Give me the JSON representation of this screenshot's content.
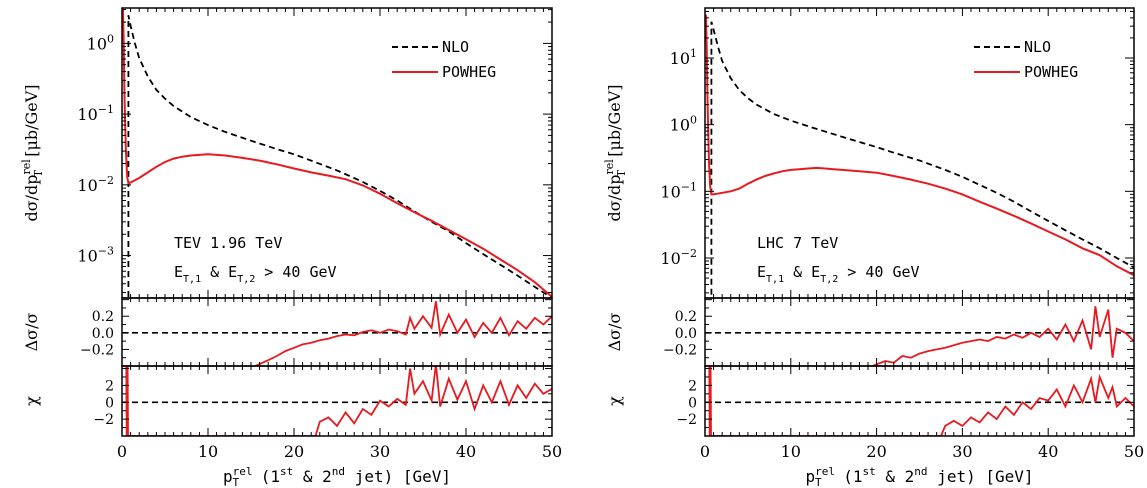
{
  "chart_data": [
    {
      "type": "line",
      "title": "",
      "annotation_energy": "TEV 1.96 TeV",
      "annotation_cut": {
        "main": "E",
        "sub1": "T,1",
        "mid": " & E",
        "sub2": "T,2",
        "rest": " > 40 GeV"
      },
      "xlabel": {
        "main": "p",
        "sup": "rel",
        "sub": "T",
        "part1": " (1",
        "sup1": "st",
        "part2": " & 2",
        "sup2": "nd",
        "part3": " jet) [GeV]"
      },
      "ylabel_main": {
        "pre": "dσ/dp",
        "sup": "rel",
        "sub": "T",
        "post": " [μb/GeV]"
      },
      "ylabel_delta": "Δσ/σ",
      "ylabel_chi": "χ",
      "xlim": [
        0,
        50
      ],
      "xticks": [
        "0",
        "10",
        "20",
        "30",
        "40",
        "50"
      ],
      "main_ylim_log10": [
        -3.6,
        0.5
      ],
      "main_yticks": [
        {
          "mant": "10",
          "exp": "0",
          "e": 0
        },
        {
          "mant": "10",
          "exp": "−1",
          "e": -1
        },
        {
          "mant": "10",
          "exp": "−2",
          "e": -2
        },
        {
          "mant": "10",
          "exp": "−3",
          "e": -3
        }
      ],
      "delta_ylim": [
        -0.4,
        0.42
      ],
      "delta_yticks": [
        "0.2",
        "0.0",
        "−0.2"
      ],
      "chi_ylim": [
        -4,
        4.3
      ],
      "chi_yticks": [
        "2",
        "0",
        "−2"
      ],
      "legend": {
        "placement": "top-right",
        "entries": [
          {
            "name": "NLO",
            "style": "dashed",
            "color": "#000000"
          },
          {
            "name": "POWHEG",
            "style": "solid",
            "color": "#e8191f"
          }
        ]
      },
      "series": [
        {
          "name": "NLO",
          "color": "#000000",
          "dash": "6,4",
          "x": [
            0.75,
            0.75,
            0.9,
            1.5,
            2,
            3,
            4,
            5,
            6,
            8,
            10,
            12,
            15,
            18,
            20,
            22,
            25,
            28,
            30,
            32,
            34,
            36,
            38,
            40,
            42,
            44,
            46,
            48,
            50
          ],
          "y": [
            1e-05,
            2.5,
            2.0,
            1.0,
            0.62,
            0.34,
            0.22,
            0.165,
            0.13,
            0.091,
            0.07,
            0.056,
            0.042,
            0.032,
            0.027,
            0.022,
            0.016,
            0.011,
            0.0082,
            0.006,
            0.0042,
            0.003,
            0.0022,
            0.0015,
            0.00105,
            0.00074,
            0.00052,
            0.00036,
            0.00025
          ]
        },
        {
          "name": "POWHEG",
          "color": "#e8191f",
          "dash": "",
          "x": [
            0.1,
            0.2,
            0.3,
            0.45,
            0.6,
            0.75,
            1,
            2,
            3,
            4,
            5,
            6,
            7,
            8,
            9,
            10,
            11,
            12,
            14,
            16,
            18,
            20,
            22,
            24,
            26,
            28,
            30,
            32,
            34,
            36,
            38,
            40,
            42,
            44,
            46,
            48,
            50
          ],
          "y": [
            3.5,
            1.0,
            0.15,
            0.03,
            0.013,
            0.0105,
            0.0108,
            0.0125,
            0.015,
            0.018,
            0.021,
            0.0235,
            0.025,
            0.026,
            0.0265,
            0.027,
            0.0265,
            0.026,
            0.024,
            0.022,
            0.0195,
            0.017,
            0.015,
            0.0135,
            0.012,
            0.0098,
            0.0075,
            0.0055,
            0.0041,
            0.0031,
            0.0023,
            0.0017,
            0.00125,
            0.00088,
            0.00062,
            0.00042,
            0.00026
          ]
        }
      ],
      "delta_series": {
        "x": [
          15.5,
          17,
          18,
          19,
          20,
          21,
          22,
          23,
          24,
          25,
          26,
          27,
          28,
          29,
          30,
          31,
          32,
          33,
          33.5,
          34,
          35,
          36,
          36.5,
          37,
          38,
          39,
          40,
          41,
          42,
          43,
          44,
          45,
          46,
          47,
          48,
          49,
          50
        ],
        "y": [
          -0.4,
          -0.33,
          -0.28,
          -0.22,
          -0.18,
          -0.14,
          -0.12,
          -0.09,
          -0.07,
          -0.04,
          -0.02,
          -0.03,
          0.01,
          0.03,
          0.0,
          0.04,
          0.02,
          -0.02,
          0.18,
          0.05,
          0.2,
          0.06,
          0.38,
          -0.02,
          0.22,
          0.0,
          0.16,
          -0.05,
          0.12,
          0.0,
          0.18,
          -0.03,
          0.14,
          0.05,
          0.18,
          0.1,
          0.2
        ]
      },
      "chi_series": {
        "x": [
          0.5,
          0.55,
          0.6,
          0.65,
          0.7,
          22.5,
          23,
          24,
          25,
          26,
          27,
          28,
          29,
          30,
          31,
          32,
          33,
          33.5,
          34,
          35,
          36,
          36.5,
          37,
          38,
          39,
          40,
          41,
          42,
          43,
          44,
          45,
          46,
          47,
          48,
          49,
          50
        ],
        "y": [
          4.3,
          -4,
          -4,
          4.3,
          -4,
          -4,
          -2.3,
          -1.8,
          -2.8,
          -1.2,
          -2.5,
          -0.8,
          -1.5,
          0.2,
          -0.5,
          0.4,
          -0.3,
          4.0,
          1.0,
          2.5,
          0.2,
          4.5,
          -0.5,
          2.8,
          0.3,
          2.5,
          -0.8,
          2.0,
          0.0,
          2.5,
          -0.3,
          2.0,
          0.5,
          2.2,
          1.0,
          1.6
        ]
      }
    },
    {
      "type": "line",
      "title": "",
      "annotation_energy": "LHC 7 TeV",
      "annotation_cut": {
        "main": "E",
        "sub1": "T,1",
        "mid": " & E",
        "sub2": "T,2",
        "rest": " > 40 GeV"
      },
      "xlabel": {
        "main": "p",
        "sup": "rel",
        "sub": "T",
        "part1": " (1",
        "sup1": "st",
        "part2": " & 2",
        "sup2": "nd",
        "part3": " jet) [GeV]"
      },
      "ylabel_main": {
        "pre": "dσ/dp",
        "sup": "rel",
        "sub": "T",
        "post": " [μb/GeV]"
      },
      "ylabel_delta": "Δσ/σ",
      "ylabel_chi": "χ",
      "xlim": [
        0,
        50
      ],
      "xticks": [
        "0",
        "10",
        "20",
        "30",
        "40",
        "50"
      ],
      "main_ylim_log10": [
        -2.6,
        1.75
      ],
      "main_yticks": [
        {
          "mant": "10",
          "exp": "1",
          "e": 1
        },
        {
          "mant": "10",
          "exp": "0",
          "e": 0
        },
        {
          "mant": "10",
          "exp": "−1",
          "e": -1
        },
        {
          "mant": "10",
          "exp": "−2",
          "e": -2
        }
      ],
      "delta_ylim": [
        -0.4,
        0.42
      ],
      "delta_yticks": [
        "0.2",
        "0.0",
        "−0.2"
      ],
      "chi_ylim": [
        -4,
        4.3
      ],
      "chi_yticks": [
        "2",
        "0",
        "−2"
      ],
      "legend": {
        "placement": "top-right",
        "entries": [
          {
            "name": "NLO",
            "style": "dashed",
            "color": "#000000"
          },
          {
            "name": "POWHEG",
            "style": "solid",
            "color": "#e8191f"
          }
        ]
      },
      "series": [
        {
          "name": "NLO",
          "color": "#000000",
          "dash": "6,4",
          "x": [
            0.75,
            0.75,
            0.9,
            1.5,
            2,
            3,
            4,
            5,
            6,
            8,
            10,
            12,
            15,
            18,
            20,
            22,
            25,
            28,
            30,
            32,
            34,
            36,
            38,
            40,
            42,
            44,
            46,
            48,
            50
          ],
          "y": [
            0.001,
            35,
            30,
            15,
            9,
            5,
            3.3,
            2.5,
            2.0,
            1.45,
            1.15,
            0.95,
            0.72,
            0.55,
            0.46,
            0.38,
            0.29,
            0.21,
            0.165,
            0.125,
            0.095,
            0.07,
            0.05,
            0.036,
            0.026,
            0.019,
            0.014,
            0.01,
            0.0072
          ]
        },
        {
          "name": "POWHEG",
          "color": "#e8191f",
          "dash": "",
          "x": [
            0.1,
            0.2,
            0.3,
            0.45,
            0.6,
            0.75,
            1,
            2,
            3,
            4,
            5,
            6,
            7,
            8,
            9,
            10,
            11,
            12,
            13,
            14,
            15,
            16,
            18,
            20,
            22,
            24,
            26,
            28,
            30,
            32,
            34,
            36,
            38,
            40,
            42,
            44,
            46,
            48,
            50
          ],
          "y": [
            45,
            15,
            2.0,
            0.3,
            0.12,
            0.09,
            0.09,
            0.095,
            0.1,
            0.11,
            0.13,
            0.15,
            0.17,
            0.185,
            0.2,
            0.21,
            0.215,
            0.22,
            0.225,
            0.22,
            0.215,
            0.21,
            0.2,
            0.19,
            0.17,
            0.15,
            0.13,
            0.11,
            0.09,
            0.07,
            0.055,
            0.043,
            0.033,
            0.025,
            0.019,
            0.014,
            0.011,
            0.0075,
            0.0055
          ]
        }
      ],
      "delta_series": {
        "x": [
          19.5,
          21,
          22,
          23,
          24,
          25,
          26,
          27,
          28,
          29,
          30,
          31,
          32,
          33,
          34,
          35,
          36,
          37,
          38,
          39,
          40,
          41,
          42,
          43,
          44,
          45,
          45.5,
          46,
          47,
          47.5,
          48,
          49,
          50
        ],
        "y": [
          -0.4,
          -0.34,
          -0.36,
          -0.28,
          -0.3,
          -0.25,
          -0.22,
          -0.2,
          -0.18,
          -0.15,
          -0.12,
          -0.1,
          -0.08,
          -0.1,
          -0.05,
          -0.07,
          -0.02,
          -0.06,
          0.0,
          -0.05,
          0.05,
          -0.08,
          0.1,
          -0.1,
          0.15,
          -0.2,
          0.32,
          -0.05,
          0.28,
          -0.3,
          0.05,
          0.0,
          -0.1
        ]
      },
      "chi_series": {
        "x": [
          0.5,
          0.55,
          0.6,
          0.65,
          0.7,
          27.5,
          28,
          29,
          30,
          31,
          32,
          33,
          34,
          35,
          36,
          37,
          38,
          39,
          40,
          41,
          42,
          43,
          44,
          45,
          45.5,
          46,
          47,
          47.5,
          48,
          49,
          50
        ],
        "y": [
          4.3,
          -4,
          -4,
          4.3,
          -4,
          -4,
          -2.8,
          -2.2,
          -2.8,
          -1.8,
          -2.4,
          -1.2,
          -2.0,
          -0.5,
          -1.5,
          0.0,
          -0.8,
          0.5,
          0.2,
          1.5,
          -0.5,
          2.0,
          0.0,
          2.8,
          0.0,
          3.0,
          0.5,
          1.8,
          -0.5,
          0.5,
          -0.5
        ]
      }
    }
  ]
}
